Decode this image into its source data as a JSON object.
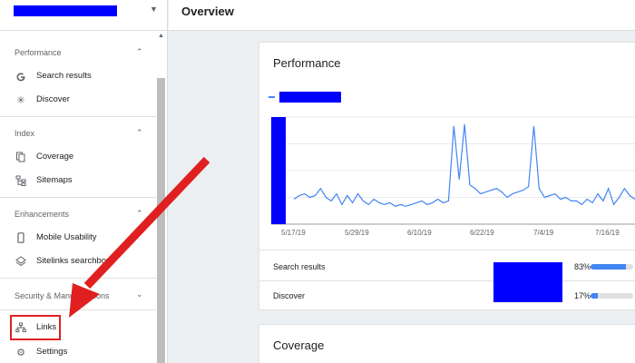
{
  "header": {
    "title": "Overview"
  },
  "sidebar": {
    "sections": [
      {
        "title": "Performance",
        "items": [
          {
            "label": "Search results",
            "icon": "google-g-icon"
          },
          {
            "label": "Discover",
            "icon": "asterisk-icon"
          }
        ]
      },
      {
        "title": "Index",
        "items": [
          {
            "label": "Coverage",
            "icon": "document-copy-icon"
          },
          {
            "label": "Sitemaps",
            "icon": "sitemap-icon"
          }
        ]
      },
      {
        "title": "Enhancements",
        "items": [
          {
            "label": "Mobile Usability",
            "icon": "phone-icon"
          },
          {
            "label": "Sitelinks searchbox",
            "icon": "layers-icon"
          }
        ]
      },
      {
        "title": "Security & Manual Actions",
        "items": []
      }
    ],
    "links_label": "Links",
    "settings_label": "Settings"
  },
  "performance": {
    "title": "Performance",
    "chart_data": {
      "type": "line",
      "x_ticks": [
        "5/17/19",
        "5/29/19",
        "6/10/19",
        "6/22/19",
        "7/4/19",
        "7/16/19"
      ],
      "series": [
        {
          "color": "#4285f4",
          "values": [
            14,
            16,
            17,
            15,
            16,
            20,
            15,
            13,
            17,
            11,
            16,
            12,
            17,
            13,
            11,
            14,
            12,
            11,
            12,
            10,
            11,
            10,
            11,
            12,
            13,
            11,
            12,
            14,
            12,
            13,
            55,
            25,
            56,
            22,
            20,
            17,
            18,
            19,
            20,
            18,
            15,
            17,
            18,
            19,
            21,
            55,
            20,
            15,
            16,
            17,
            14,
            15,
            13,
            13,
            11,
            14,
            12,
            17,
            13,
            20,
            11,
            15,
            20,
            16,
            14,
            12
          ]
        }
      ]
    },
    "metrics": [
      {
        "label": "Search results",
        "percent": "83%",
        "fraction": 0.83
      },
      {
        "label": "Discover",
        "percent": "17%",
        "fraction": 0.17
      }
    ]
  },
  "coverage": {
    "title": "Coverage"
  },
  "colors": {
    "accent": "#4285f4",
    "annotation": "#e02020",
    "redaction": "#0000ff"
  }
}
